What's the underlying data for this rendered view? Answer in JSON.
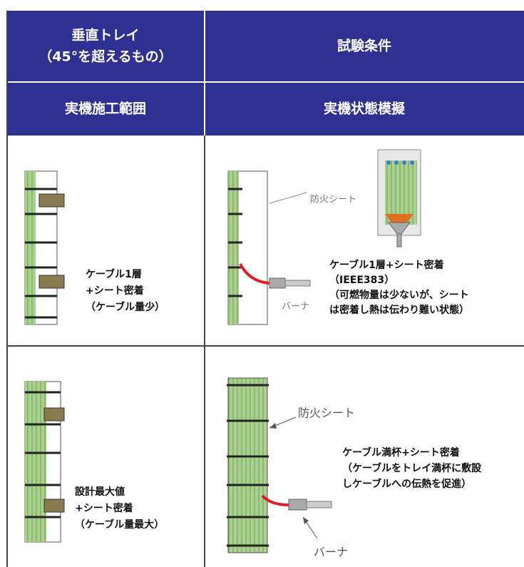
{
  "table": {
    "header": [
      [
        [
          "垂直トレイ",
          "（45°を超えるもの）"
        ],
        "試験条件"
      ],
      [
        "実機施工範囲",
        "実機状態模擬"
      ]
    ],
    "rows": [
      {
        "left": [
          "ケーブル1層",
          "+シート密着",
          "（ケーブル量少）"
        ],
        "right": {
          "sheet_label": "防火シート",
          "burner_label": "バーナ",
          "text": [
            "ケーブル1層+シート密着",
            "（IEEE383）",
            "（可燃物量は少ないが、シート",
            "は密着し熱は伝わり難い状態）"
          ]
        }
      },
      {
        "left": [
          "設計最大値",
          "+シート密着",
          "（ケーブル量最大）"
        ],
        "right": {
          "sheet_label": "防火シート",
          "burner_label": "バーナ",
          "text": [
            "ケーブル満杯+シート密着",
            "（ケーブルをトレイ満杯に敷設",
            "しケーブルへの伝熱を促進）"
          ]
        }
      }
    ]
  }
}
